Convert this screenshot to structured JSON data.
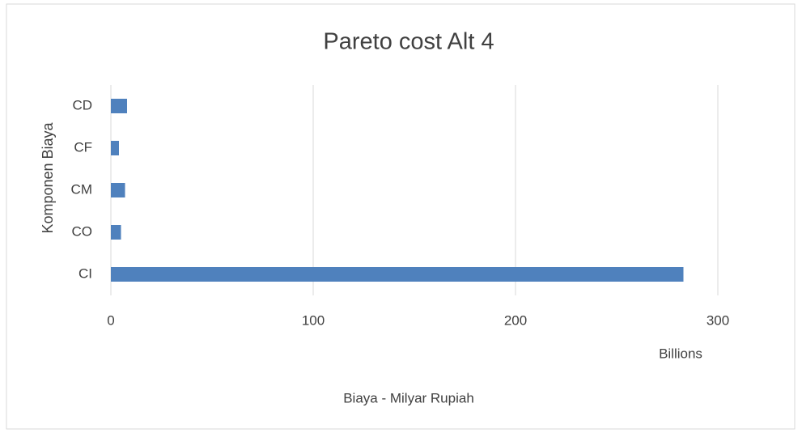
{
  "chart_data": {
    "type": "bar",
    "orientation": "horizontal",
    "title": "Pareto cost Alt 4",
    "x_label": "Biaya - Milyar Rupiah",
    "y_label": "Komponen Biaya",
    "x_unit_label": "Billions",
    "categories": [
      "CI",
      "CO",
      "CM",
      "CF",
      "CD"
    ],
    "values": [
      283,
      5,
      7,
      4,
      8
    ],
    "color": "#4f81bd",
    "xlim": [
      0,
      300
    ],
    "xticks": [
      0,
      100,
      200,
      300
    ],
    "grid": true
  }
}
